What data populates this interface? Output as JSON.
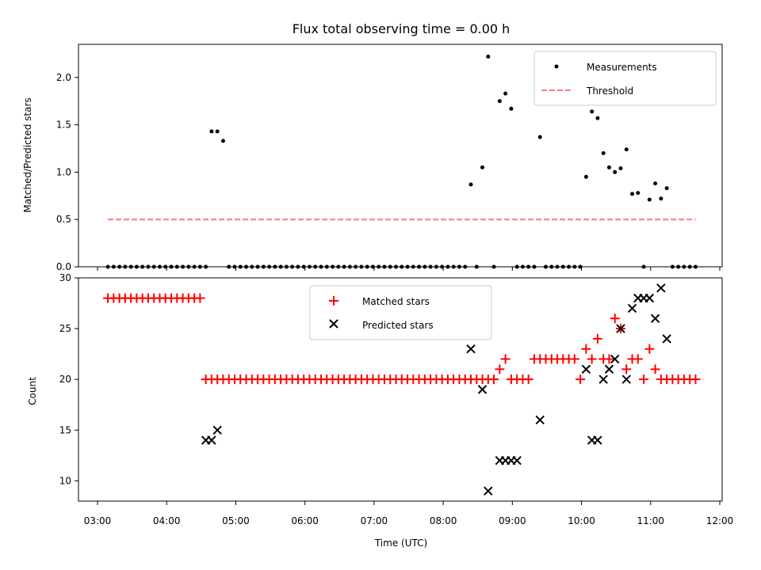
{
  "chart_data": [
    {
      "type": "scatter",
      "title": "Flux total observing time = 0.00 h",
      "ylabel": "Matched/Predicted stars",
      "xlabel": "",
      "xlim": [
        "03:00",
        "12:00"
      ],
      "ylim": [
        0,
        2.35
      ],
      "yticks": [
        "0.0",
        "0.5",
        "1.0",
        "1.5",
        "2.0"
      ],
      "legend_position": "upper right",
      "series": [
        {
          "name": "Measurements",
          "style": "dots",
          "color": "#000000",
          "x": [
            "03:09",
            "03:14",
            "03:19",
            "03:24",
            "03:29",
            "03:34",
            "03:39",
            "03:44",
            "03:49",
            "03:54",
            "03:59",
            "04:04",
            "04:09",
            "04:14",
            "04:19",
            "04:24",
            "04:29",
            "04:34",
            "04:39",
            "04:44",
            "04:49",
            "04:54",
            "04:59",
            "05:04",
            "05:09",
            "05:14",
            "05:19",
            "05:24",
            "05:29",
            "05:34",
            "05:39",
            "05:44",
            "05:49",
            "05:54",
            "05:59",
            "06:04",
            "06:09",
            "06:14",
            "06:19",
            "06:24",
            "06:29",
            "06:34",
            "06:39",
            "06:44",
            "06:49",
            "06:54",
            "06:59",
            "07:04",
            "07:09",
            "07:14",
            "07:19",
            "07:24",
            "07:29",
            "07:34",
            "07:39",
            "07:44",
            "07:49",
            "07:54",
            "07:59",
            "08:04",
            "08:09",
            "08:14",
            "08:19",
            "08:24",
            "08:29",
            "08:34",
            "08:39",
            "08:44",
            "08:49",
            "08:54",
            "08:59",
            "09:04",
            "09:09",
            "09:14",
            "09:19",
            "09:24",
            "09:29",
            "09:34",
            "09:39",
            "09:44",
            "09:49",
            "09:54",
            "09:59",
            "10:04",
            "10:09",
            "10:14",
            "10:19",
            "10:24",
            "10:29",
            "10:34",
            "10:39",
            "10:44",
            "10:49",
            "10:54",
            "10:59",
            "11:04",
            "11:09",
            "11:14",
            "11:19",
            "11:24",
            "11:29",
            "11:34",
            "11:39"
          ],
          "y": [
            0,
            0,
            0,
            0,
            0,
            0,
            0,
            0,
            0,
            0,
            0,
            0,
            0,
            0,
            0,
            0,
            0,
            0,
            1.43,
            1.43,
            1.33,
            0,
            0,
            0,
            0,
            0,
            0,
            0,
            0,
            0,
            0,
            0,
            0,
            0,
            0,
            0,
            0,
            0,
            0,
            0,
            0,
            0,
            0,
            0,
            0,
            0,
            0,
            0,
            0,
            0,
            0,
            0,
            0,
            0,
            0,
            0,
            0,
            0,
            0,
            0,
            0,
            0,
            0,
            0.87,
            0,
            1.05,
            2.22,
            0,
            1.75,
            1.83,
            1.67,
            0,
            0,
            0,
            0,
            1.37,
            0,
            0,
            0,
            0,
            0,
            0,
            0,
            0.95,
            1.64,
            1.57,
            1.2,
            1.05,
            1.0,
            1.04,
            1.24,
            0.77,
            0.78,
            0,
            0.71,
            0.88,
            0.72,
            0.83,
            0,
            0,
            0,
            0,
            0
          ]
        },
        {
          "name": "Threshold",
          "style": "dashed-line",
          "color": "#f08080",
          "x": [
            "03:09",
            "11:39"
          ],
          "y": [
            0.5,
            0.5
          ]
        }
      ]
    },
    {
      "type": "scatter",
      "title": "",
      "ylabel": "Count",
      "xlabel": "Time (UTC)",
      "xlim": [
        "03:00",
        "12:00"
      ],
      "ylim": [
        8,
        30
      ],
      "yticks": [
        "10",
        "15",
        "20",
        "25",
        "30"
      ],
      "xticks": [
        "03:00",
        "04:00",
        "05:00",
        "06:00",
        "07:00",
        "08:00",
        "09:00",
        "10:00",
        "11:00",
        "12:00"
      ],
      "legend_position": "upper center",
      "series": [
        {
          "name": "Matched stars",
          "marker": "plus",
          "color": "#ff0000",
          "x": [
            "03:09",
            "03:14",
            "03:19",
            "03:24",
            "03:29",
            "03:34",
            "03:39",
            "03:44",
            "03:49",
            "03:54",
            "03:59",
            "04:04",
            "04:09",
            "04:14",
            "04:19",
            "04:24",
            "04:29",
            "04:34",
            "04:39",
            "04:44",
            "04:49",
            "04:54",
            "04:59",
            "05:04",
            "05:09",
            "05:14",
            "05:19",
            "05:24",
            "05:29",
            "05:34",
            "05:39",
            "05:44",
            "05:49",
            "05:54",
            "05:59",
            "06:04",
            "06:09",
            "06:14",
            "06:19",
            "06:24",
            "06:29",
            "06:34",
            "06:39",
            "06:44",
            "06:49",
            "06:54",
            "06:59",
            "07:04",
            "07:09",
            "07:14",
            "07:19",
            "07:24",
            "07:29",
            "07:34",
            "07:39",
            "07:44",
            "07:49",
            "07:54",
            "07:59",
            "08:04",
            "08:09",
            "08:14",
            "08:19",
            "08:24",
            "08:29",
            "08:34",
            "08:39",
            "08:44",
            "08:49",
            "08:54",
            "08:59",
            "09:04",
            "09:09",
            "09:14",
            "09:19",
            "09:24",
            "09:29",
            "09:34",
            "09:39",
            "09:44",
            "09:49",
            "09:54",
            "09:59",
            "10:04",
            "10:09",
            "10:14",
            "10:19",
            "10:24",
            "10:29",
            "10:34",
            "10:39",
            "10:44",
            "10:49",
            "10:54",
            "10:59",
            "11:04",
            "11:09",
            "11:14",
            "11:19",
            "11:24",
            "11:29",
            "11:34",
            "11:39"
          ],
          "y": [
            28,
            28,
            28,
            28,
            28,
            28,
            28,
            28,
            28,
            28,
            28,
            28,
            28,
            28,
            28,
            28,
            28,
            20,
            20,
            20,
            20,
            20,
            20,
            20,
            20,
            20,
            20,
            20,
            20,
            20,
            20,
            20,
            20,
            20,
            20,
            20,
            20,
            20,
            20,
            20,
            20,
            20,
            20,
            20,
            20,
            20,
            20,
            20,
            20,
            20,
            20,
            20,
            20,
            20,
            20,
            20,
            20,
            20,
            20,
            20,
            20,
            20,
            20,
            20,
            20,
            20,
            20,
            20,
            21,
            22,
            20,
            20,
            20,
            20,
            22,
            22,
            22,
            22,
            22,
            22,
            22,
            22,
            20,
            23,
            22,
            24,
            22,
            22,
            26,
            25,
            21,
            22,
            22,
            20,
            23,
            21,
            20,
            20,
            20,
            20,
            20,
            20,
            20
          ]
        },
        {
          "name": "Predicted stars",
          "marker": "x",
          "color": "#000000",
          "x": [
            "04:34",
            "04:39",
            "04:44",
            "08:24",
            "08:34",
            "08:39",
            "08:49",
            "08:54",
            "08:59",
            "09:04",
            "09:24",
            "10:04",
            "10:09",
            "10:14",
            "10:19",
            "10:24",
            "10:29",
            "10:34",
            "10:39",
            "10:44",
            "10:49",
            "10:54",
            "10:59",
            "11:04",
            "11:09",
            "11:14"
          ],
          "y": [
            14,
            14,
            15,
            23,
            19,
            9,
            12,
            12,
            12,
            12,
            16,
            21,
            14,
            14,
            20,
            21,
            22,
            25,
            20,
            27,
            28,
            28,
            28,
            26,
            29,
            24
          ]
        }
      ]
    }
  ]
}
